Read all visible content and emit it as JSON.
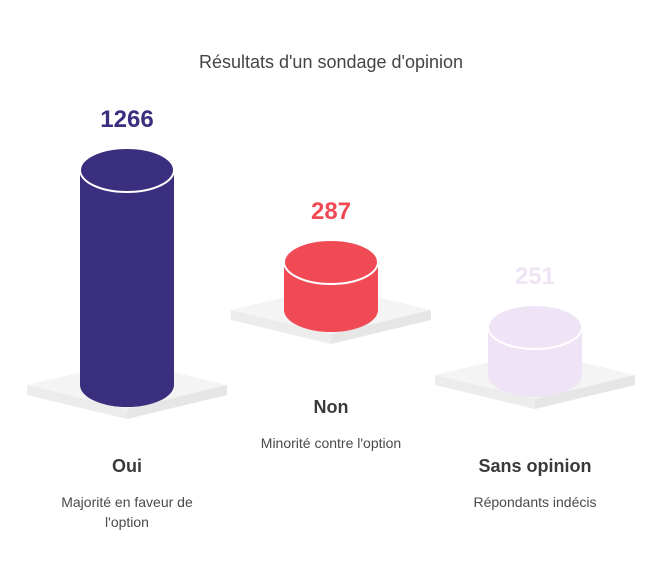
{
  "chart_data": {
    "type": "bar",
    "title": "Résultats d'un sondage d'opinion",
    "categories": [
      "Oui",
      "Non",
      "Sans opinion"
    ],
    "values": [
      1266,
      287,
      251
    ],
    "descriptions": [
      "Majorité en faveur de l'option",
      "Minorité contre l'option",
      "Répondants indécis"
    ],
    "colors": [
      "#3a2f7e",
      "#f04a55",
      "#efe4f5"
    ],
    "value_colors": [
      "#3a2f7e",
      "#f04a55",
      "#efe4f5"
    ]
  }
}
